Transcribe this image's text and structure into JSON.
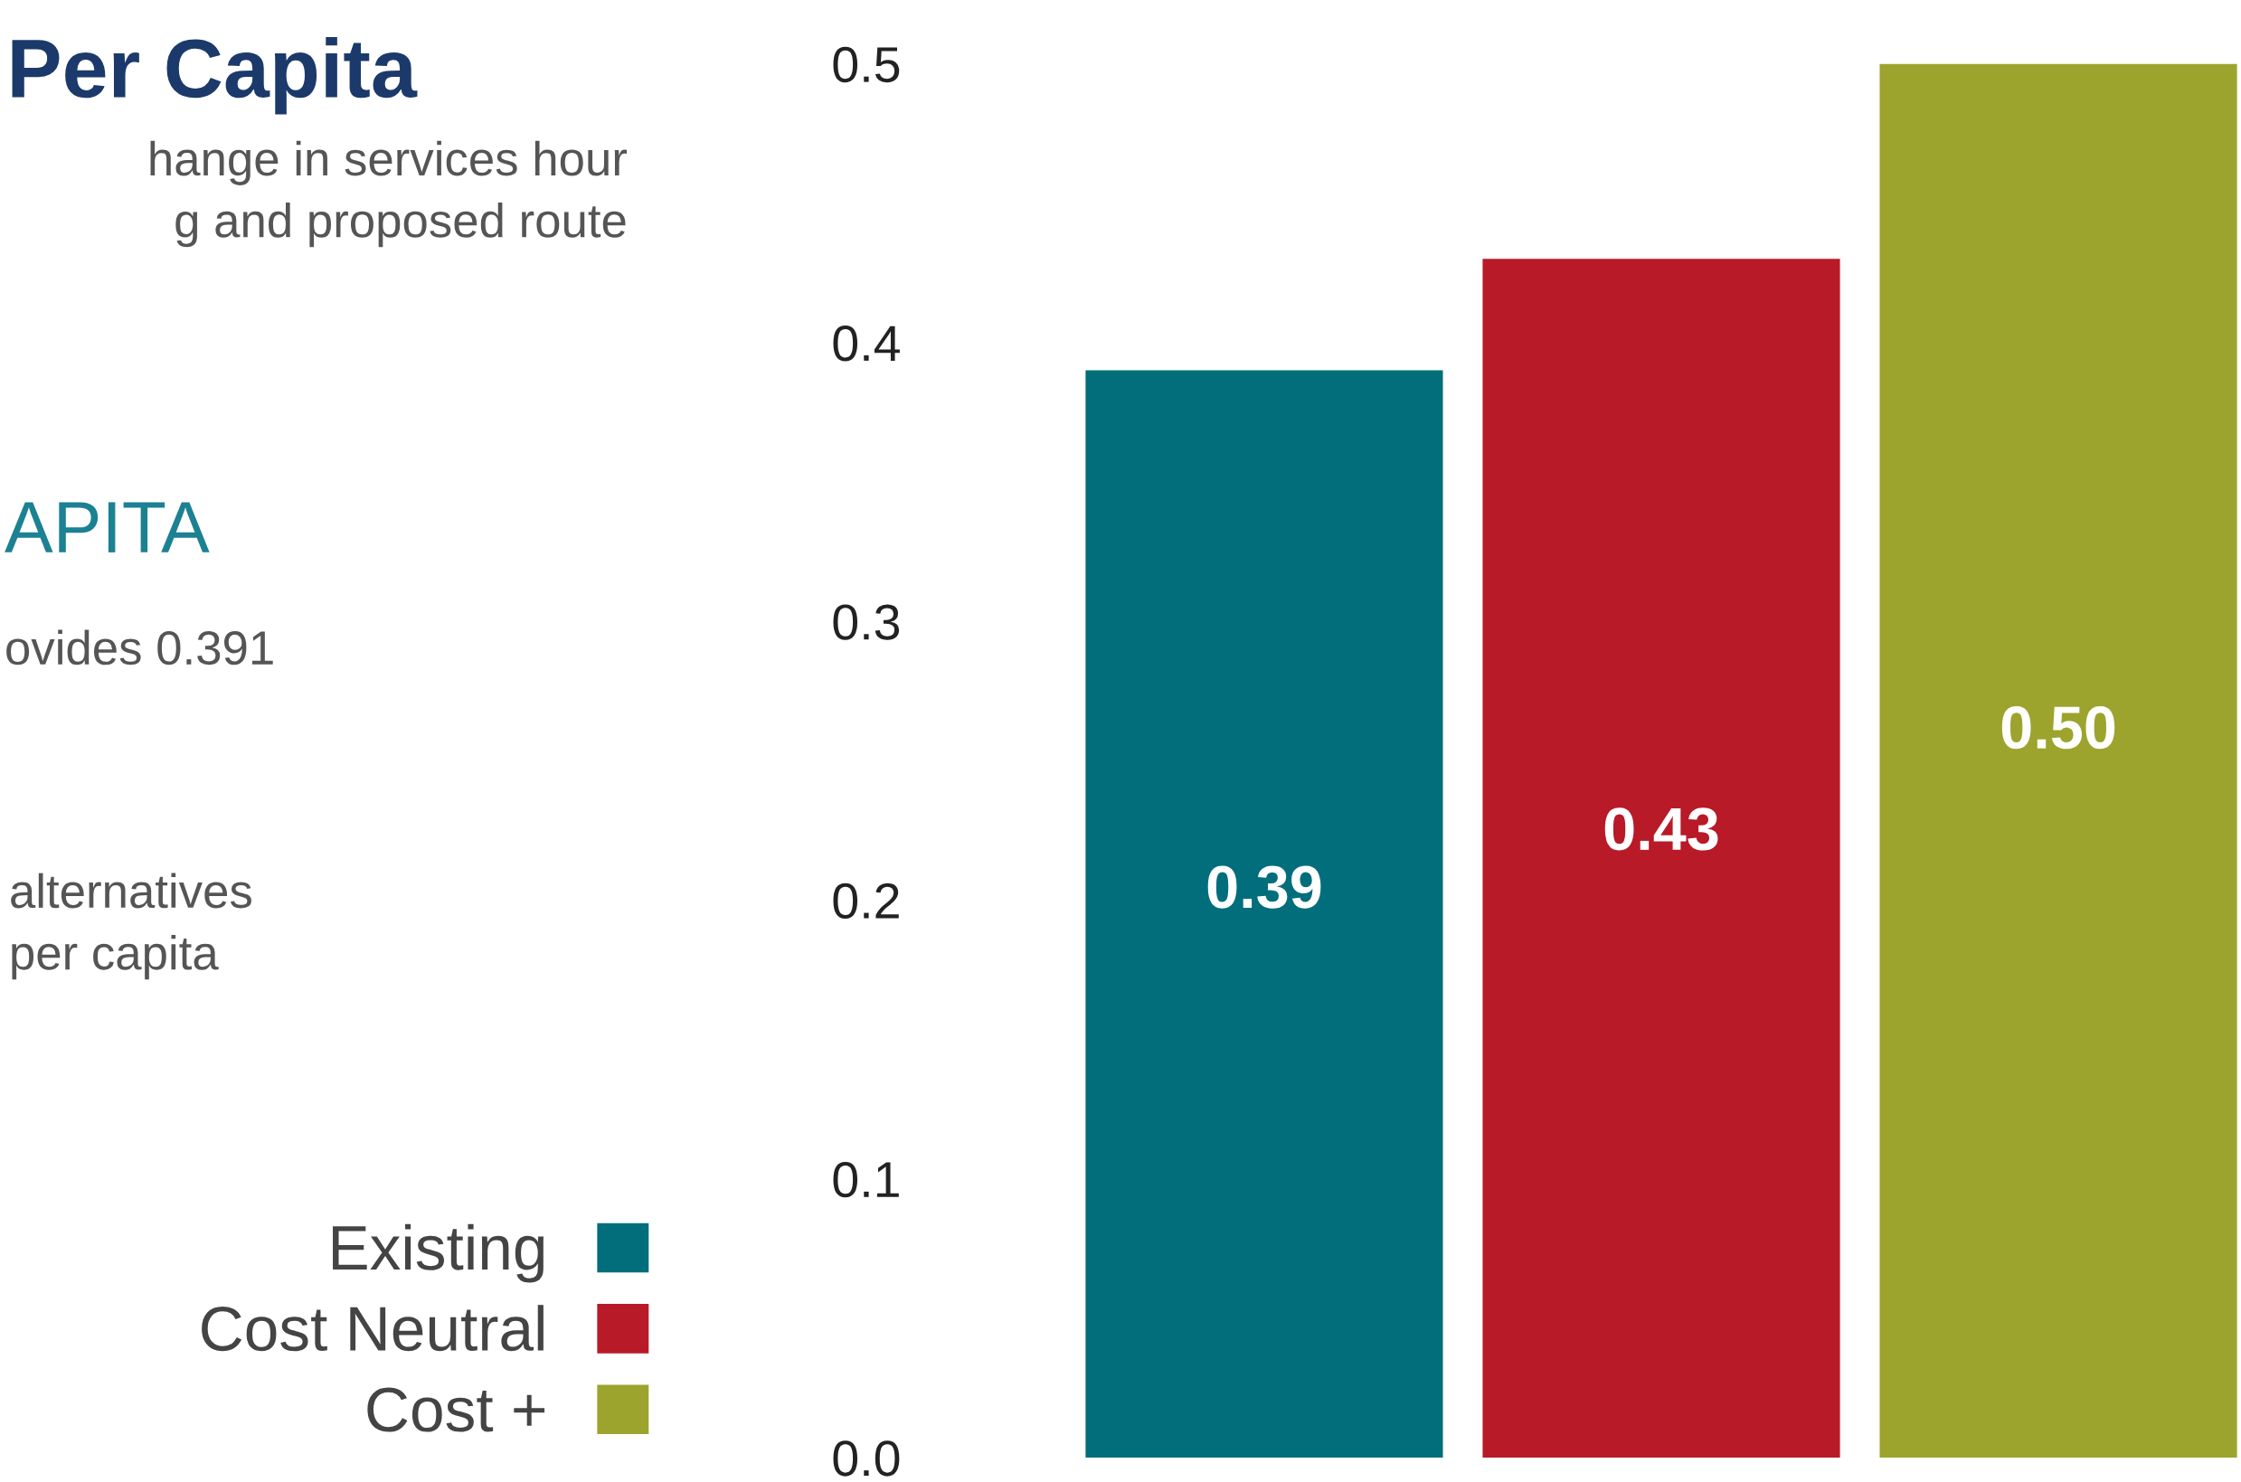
{
  "chart_data": {
    "type": "bar",
    "title": "Per Capita",
    "subtitle": "hange in services hour\ng and proposed route",
    "annotations": [
      "APITA",
      "ovides 0.391",
      "alternatives\nper capita"
    ],
    "categories": [
      null
    ],
    "series": [
      {
        "name": "Existing",
        "color": "#026e7c",
        "values": [
          0.39
        ],
        "value_labels": [
          "0.39"
        ]
      },
      {
        "name": "Cost Neutral",
        "color": "#b81a28",
        "values": [
          0.43
        ],
        "value_labels": [
          "0.43"
        ]
      },
      {
        "name": "Cost +",
        "color": "#9ca42e",
        "values": [
          0.5
        ],
        "value_labels": [
          "0.50"
        ]
      }
    ],
    "ylim": [
      0,
      0.5
    ],
    "yticks": [
      "0.0",
      "0.1",
      "0.2",
      "0.3",
      "0.4",
      "0.5"
    ],
    "tick_labels": "y",
    "grid": false,
    "legend": "left"
  }
}
